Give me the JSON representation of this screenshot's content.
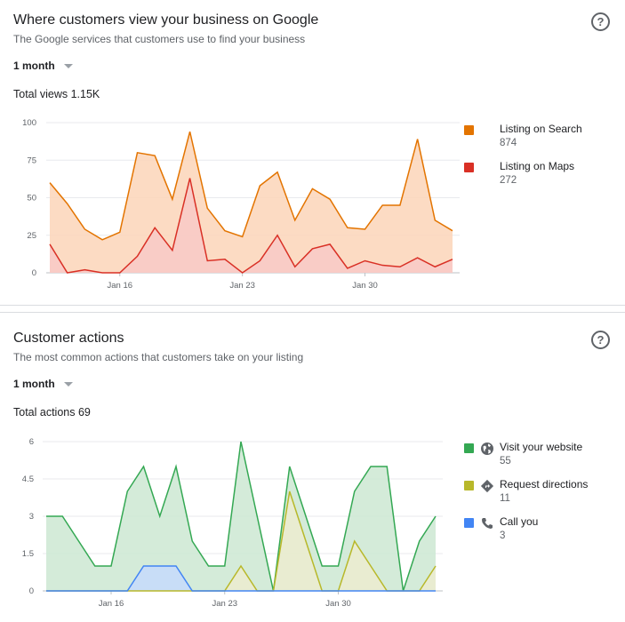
{
  "views_card": {
    "title": "Where customers view your business on Google",
    "subtitle": "The Google services that customers use to find your business",
    "period": "1 month",
    "total": "Total views 1.15K",
    "help_icon": "question-circle-icon",
    "legend": [
      {
        "label": "Listing on Search",
        "value": "874",
        "color": "#e37400"
      },
      {
        "label": "Listing on Maps",
        "value": "272",
        "color": "#d93025"
      }
    ]
  },
  "actions_card": {
    "title": "Customer actions",
    "subtitle": "The most common actions that customers take on your listing",
    "period": "1 month",
    "total": "Total actions 69",
    "help_icon": "question-circle-icon",
    "legend": [
      {
        "label": "Visit your website",
        "value": "55",
        "color": "#34a853",
        "icon": "globe-icon"
      },
      {
        "label": "Request directions",
        "value": "11",
        "color": "#b8b82a",
        "icon": "directions-icon"
      },
      {
        "label": "Call you",
        "value": "3",
        "color": "#4285f4",
        "icon": "phone-icon"
      }
    ]
  },
  "chart_data": [
    {
      "type": "area",
      "x_tick_labels": [
        "Jan 16",
        "Jan 23",
        "Jan 30"
      ],
      "x_tick_positions": [
        4,
        11,
        18
      ],
      "ylim": [
        0,
        100
      ],
      "y_ticks": [
        "0",
        "25",
        "50",
        "75",
        "100"
      ],
      "grid": true,
      "legend_position": "right",
      "series": [
        {
          "name": "Listing on Search",
          "color": "#e37400",
          "fill": "#fbd5b8",
          "values": [
            60,
            46,
            29,
            22,
            27,
            80,
            78,
            49,
            94,
            43,
            28,
            24,
            58,
            67,
            35,
            56,
            49,
            30,
            29,
            45,
            45,
            89,
            35,
            28
          ]
        },
        {
          "name": "Listing on Maps",
          "color": "#d93025",
          "fill": "#f8c9c7",
          "values": [
            19,
            0,
            2,
            0,
            0,
            11,
            30,
            15,
            63,
            8,
            9,
            0,
            8,
            25,
            4,
            16,
            19,
            3,
            8,
            5,
            4,
            10,
            4,
            9
          ]
        }
      ]
    },
    {
      "type": "area",
      "x_tick_labels": [
        "Jan 16",
        "Jan 23",
        "Jan 30"
      ],
      "x_tick_positions": [
        4,
        11,
        18
      ],
      "ylim": [
        0,
        6
      ],
      "y_ticks": [
        "0",
        "1.5",
        "3",
        "4.5",
        "6"
      ],
      "grid": true,
      "legend_position": "right",
      "series": [
        {
          "name": "Visit your website",
          "color": "#34a853",
          "fill": "#cde8d2",
          "values": [
            3,
            3,
            2,
            1,
            1,
            4,
            5,
            3,
            5,
            2,
            1,
            1,
            6,
            3,
            0,
            5,
            3,
            1,
            1,
            4,
            5,
            5,
            0,
            2,
            3
          ]
        },
        {
          "name": "Request directions",
          "color": "#b8b82a",
          "fill": "#ececcf",
          "values": [
            0,
            0,
            0,
            0,
            0,
            0,
            0,
            0,
            0,
            0,
            0,
            0,
            1,
            0,
            0,
            4,
            2,
            0,
            0,
            2,
            1,
            0,
            0,
            0,
            1
          ]
        },
        {
          "name": "Call you",
          "color": "#4285f4",
          "fill": "#c6dafc",
          "values": [
            0,
            0,
            0,
            0,
            0,
            0,
            1,
            1,
            1,
            0,
            0,
            0,
            0,
            0,
            0,
            0,
            0,
            0,
            0,
            0,
            0,
            0,
            0,
            0,
            0
          ]
        }
      ]
    }
  ]
}
